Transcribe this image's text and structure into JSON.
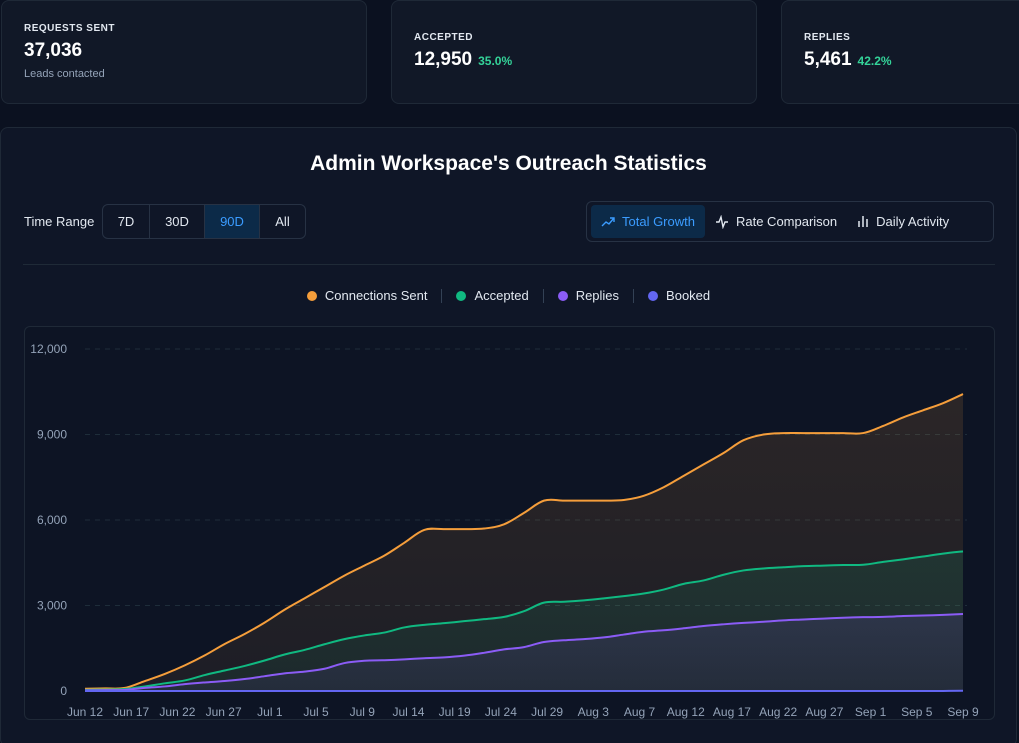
{
  "stats": [
    {
      "label": "REQUESTS SENT",
      "value": "37,036",
      "sub": "Leads contacted",
      "pct": ""
    },
    {
      "label": "ACCEPTED",
      "value": "12,950",
      "sub": "",
      "pct": "35.0%"
    },
    {
      "label": "REPLIES",
      "value": "5,461",
      "sub": "",
      "pct": "42.2%"
    }
  ],
  "panel": {
    "title": "Admin Workspace's Outreach Statistics",
    "time_range_label": "Time Range",
    "ranges": [
      "7D",
      "30D",
      "90D",
      "All"
    ],
    "active_range": "90D",
    "views": [
      {
        "label": "Total Growth",
        "icon": "trending-up-icon",
        "active": true
      },
      {
        "label": "Rate Comparison",
        "icon": "activity-icon",
        "active": false
      },
      {
        "label": "Daily Activity",
        "icon": "bar-chart-icon",
        "active": false
      }
    ]
  },
  "colors": {
    "connections": "#f59e3b",
    "accepted": "#10b981",
    "replies": "#8b5cf6",
    "booked": "#6366f1",
    "active_blue": "#3b9cff"
  },
  "chart_data": {
    "type": "area",
    "x_ticks": [
      "Jun 12",
      "Jun 17",
      "Jun 22",
      "Jun 27",
      "Jul 1",
      "Jul 5",
      "Jul 9",
      "Jul 14",
      "Jul 19",
      "Jul 24",
      "Jul 29",
      "Aug 3",
      "Aug 7",
      "Aug 12",
      "Aug 17",
      "Aug 22",
      "Aug 27",
      "Sep 1",
      "Sep 5",
      "Sep 9"
    ],
    "y_ticks": [
      "0",
      "3,000",
      "6,000",
      "9,000",
      "12,000"
    ],
    "ylim": [
      0,
      12000
    ],
    "grid": true,
    "legend_position": "top-center",
    "x": [
      "Jun 12",
      "Jun 14",
      "Jun 16",
      "Jun 18",
      "Jun 20",
      "Jun 22",
      "Jun 24",
      "Jun 26",
      "Jun 28",
      "Jun 30",
      "Jul 2",
      "Jul 4",
      "Jul 6",
      "Jul 8",
      "Jul 10",
      "Jul 12",
      "Jul 14",
      "Jul 16",
      "Jul 18",
      "Jul 20",
      "Jul 22",
      "Jul 24",
      "Jul 26",
      "Jul 28",
      "Jul 30",
      "Aug 1",
      "Aug 3",
      "Aug 5",
      "Aug 7",
      "Aug 9",
      "Aug 11",
      "Aug 13",
      "Aug 15",
      "Aug 17",
      "Aug 19",
      "Aug 21",
      "Aug 23",
      "Aug 25",
      "Aug 27",
      "Aug 29",
      "Aug 31",
      "Sep 2",
      "Sep 4",
      "Sep 6",
      "Sep 9"
    ],
    "series": [
      {
        "name": "Connections Sent",
        "color": "#f59e3b",
        "values": [
          80,
          90,
          110,
          350,
          600,
          900,
          1250,
          1650,
          2000,
          2400,
          2850,
          3250,
          3650,
          4050,
          4400,
          4750,
          5200,
          5650,
          5680,
          5680,
          5700,
          5850,
          6250,
          6680,
          6680,
          6680,
          6680,
          6700,
          6850,
          7150,
          7550,
          7950,
          8350,
          8800,
          9000,
          9050,
          9050,
          9050,
          9050,
          9050,
          9300,
          9600,
          9850,
          10100,
          10420
        ]
      },
      {
        "name": "Accepted",
        "color": "#10b981",
        "values": [
          40,
          50,
          70,
          160,
          270,
          370,
          560,
          720,
          880,
          1070,
          1280,
          1440,
          1640,
          1820,
          1950,
          2050,
          2230,
          2320,
          2380,
          2450,
          2520,
          2600,
          2800,
          3100,
          3130,
          3180,
          3250,
          3330,
          3420,
          3560,
          3760,
          3880,
          4080,
          4230,
          4300,
          4340,
          4380,
          4400,
          4420,
          4430,
          4530,
          4620,
          4720,
          4820,
          4900
        ]
      },
      {
        "name": "Replies",
        "color": "#8b5cf6",
        "values": [
          20,
          30,
          40,
          110,
          160,
          240,
          300,
          350,
          420,
          520,
          620,
          680,
          780,
          980,
          1060,
          1080,
          1110,
          1150,
          1180,
          1240,
          1340,
          1460,
          1540,
          1720,
          1780,
          1820,
          1880,
          1980,
          2080,
          2130,
          2200,
          2280,
          2340,
          2390,
          2430,
          2480,
          2510,
          2540,
          2570,
          2590,
          2600,
          2630,
          2650,
          2670,
          2700
        ]
      },
      {
        "name": "Booked",
        "color": "#6366f1",
        "values": [
          0,
          0,
          0,
          0,
          0,
          0,
          0,
          0,
          0,
          0,
          0,
          0,
          0,
          0,
          0,
          0,
          0,
          0,
          0,
          0,
          0,
          0,
          0,
          0,
          0,
          0,
          0,
          0,
          0,
          0,
          0,
          0,
          0,
          0,
          0,
          0,
          0,
          0,
          0,
          0,
          0,
          0,
          0,
          0,
          10
        ]
      }
    ]
  }
}
